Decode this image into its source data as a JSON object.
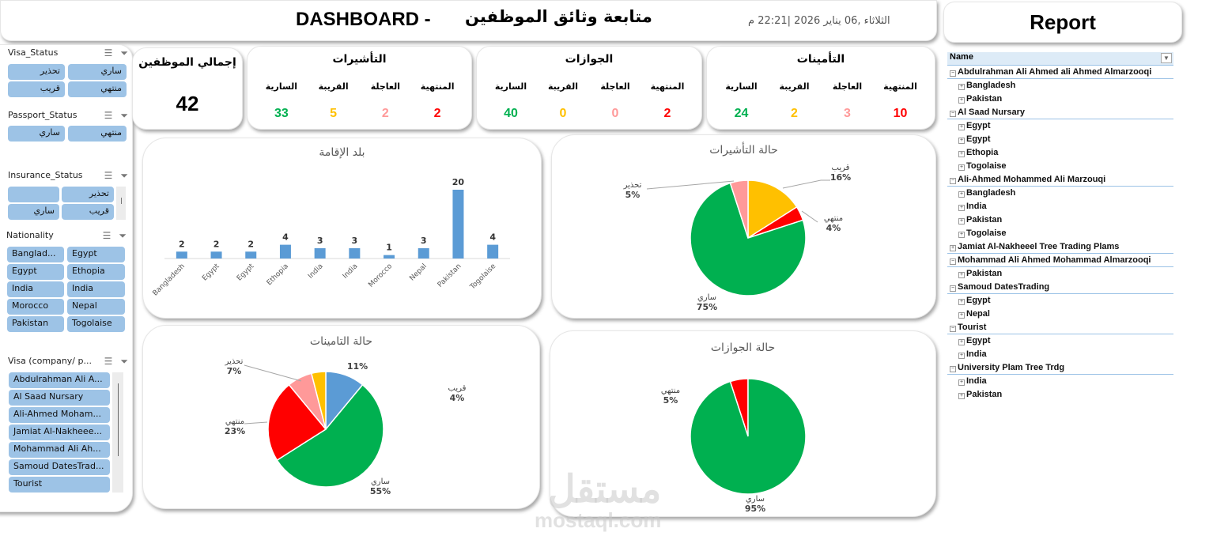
{
  "header": {
    "dashboard_label": "DASHBOARD -",
    "arabic_title": "متابعة وثائق الموظفين",
    "date_text": "الثلاثاء ,06 يناير 2026  |22:21 م",
    "report_label": "Report"
  },
  "slicers": {
    "visa_status": {
      "title": "Visa_Status",
      "items": [
        "ساري",
        "تحذير",
        "منتهي",
        "قريب"
      ]
    },
    "passport_status": {
      "title": "Passport_Status",
      "items": [
        "منتهي",
        "ساري"
      ]
    },
    "insurance_status": {
      "title": "Insurance_Status",
      "items": [
        "تحذير",
        "",
        "قريب",
        "ساري"
      ]
    },
    "nationality": {
      "title": "Nationality",
      "items": [
        "Banglad...",
        "Egypt",
        "Egypt",
        "Ethopia",
        "India",
        "India",
        "Morocco",
        "Nepal",
        "Pakistan",
        "Togolaise"
      ]
    },
    "visa_company": {
      "title": "Visa (company/ p...",
      "items": [
        "Abdulrahman Ali A...",
        "Al Saad Nursary",
        "Ali-Ahmed Moham...",
        "Jamiat Al-Nakheee...",
        "Mohammad Ali Ah...",
        "Samoud DatesTrad...",
        "Tourist"
      ]
    }
  },
  "kpis": {
    "total": {
      "title": "إجمالي الموظفين",
      "value": "42"
    },
    "visas": {
      "title": "التأشيرات",
      "labels": [
        "المنتهية",
        "العاجلة",
        "القريبة",
        "السارية"
      ],
      "values": [
        "2",
        "2",
        "5",
        "33"
      ]
    },
    "passports": {
      "title": "الجوازات",
      "labels": [
        "المنتهية",
        "العاجلة",
        "القريبة",
        "السارية"
      ],
      "values": [
        "2",
        "0",
        "0",
        "40"
      ]
    },
    "insurance": {
      "title": "التأمينات",
      "labels": [
        "المنتهية",
        "العاجلة",
        "القريبة",
        "السارية"
      ],
      "values": [
        "10",
        "3",
        "2",
        "24"
      ]
    }
  },
  "colors": {
    "expired": "#ff0000",
    "urgent": "#ff9999",
    "near": "#ffc000",
    "valid": "#00b050",
    "bar": "#5b9bd5",
    "slicer_chip": "#9dc3e6"
  },
  "chart_data": [
    {
      "type": "bar",
      "title": "بلد الإقامة",
      "categories": [
        "Bangladesh",
        "Egypt",
        "Egypt",
        "Ethopia",
        "India",
        "India",
        "Morocco",
        "Nepal",
        "Pakistan",
        "Togolaise"
      ],
      "values": [
        2,
        2,
        2,
        4,
        3,
        3,
        1,
        3,
        20,
        4
      ],
      "xlabel": "",
      "ylabel": "",
      "grid": false,
      "data_labels": true
    },
    {
      "type": "pie",
      "title": "حالة التأشيرات",
      "categories": [
        "قريب",
        "منتهي",
        "ساري",
        "تحذير"
      ],
      "values": [
        16,
        4,
        75,
        5
      ],
      "labels": [
        "16%",
        "4%",
        "75%",
        "5%"
      ],
      "colors": [
        "#ffc000",
        "#ff0000",
        "#00b050",
        "#ff9999"
      ]
    },
    {
      "type": "pie",
      "title": "حالة التامينات",
      "categories": [
        "",
        "ساري",
        "منتهي",
        "تحذير",
        "قريب"
      ],
      "values": [
        11,
        55,
        23,
        7,
        4
      ],
      "labels": [
        "11%",
        "55%",
        "23%",
        "7%",
        "4%"
      ],
      "colors": [
        "#5b9bd5",
        "#00b050",
        "#ff0000",
        "#ff9999",
        "#ffc000"
      ]
    },
    {
      "type": "pie",
      "title": "حالة الجوازات",
      "categories": [
        "ساري",
        "منتهي"
      ],
      "values": [
        95,
        5
      ],
      "labels": [
        "95%",
        "5%"
      ],
      "colors": [
        "#00b050",
        "#ff0000"
      ]
    }
  ],
  "report_tree": {
    "header": "Name",
    "rows": [
      {
        "level": 0,
        "label": "Abdulrahman Ali Ahmed ali Ahmed Almarzooqi",
        "expanded": true
      },
      {
        "level": 1,
        "label": "Bangladesh"
      },
      {
        "level": 1,
        "label": "Pakistan"
      },
      {
        "level": 0,
        "label": "Al Saad Nursary",
        "expanded": true
      },
      {
        "level": 1,
        "label": "Egypt"
      },
      {
        "level": 1,
        "label": "Egypt"
      },
      {
        "level": 1,
        "label": "Ethopia"
      },
      {
        "level": 1,
        "label": "Togolaise"
      },
      {
        "level": 0,
        "label": "Ali-Ahmed Mohammed Ali Marzouqi",
        "expanded": true
      },
      {
        "level": 1,
        "label": "Bangladesh"
      },
      {
        "level": 1,
        "label": "India"
      },
      {
        "level": 1,
        "label": "Pakistan"
      },
      {
        "level": 1,
        "label": "Togolaise"
      },
      {
        "level": 0,
        "label": "Jamiat Al-Nakheeel Tree Trading Plams",
        "expanded": false
      },
      {
        "level": 0,
        "label": "Mohammad Ali Ahmed Mohammad Almarzooqi",
        "expanded": true
      },
      {
        "level": 1,
        "label": "Pakistan"
      },
      {
        "level": 0,
        "label": "Samoud DatesTrading",
        "expanded": true
      },
      {
        "level": 1,
        "label": "Egypt"
      },
      {
        "level": 1,
        "label": "Nepal"
      },
      {
        "level": 0,
        "label": "Tourist",
        "expanded": true
      },
      {
        "level": 1,
        "label": "Egypt"
      },
      {
        "level": 1,
        "label": "India"
      },
      {
        "level": 0,
        "label": "University Plam Tree Trdg",
        "expanded": true
      },
      {
        "level": 1,
        "label": "India"
      },
      {
        "level": 1,
        "label": "Pakistan"
      }
    ]
  },
  "watermark": {
    "arabic": "مستقل",
    "english": "mostaql.com"
  }
}
